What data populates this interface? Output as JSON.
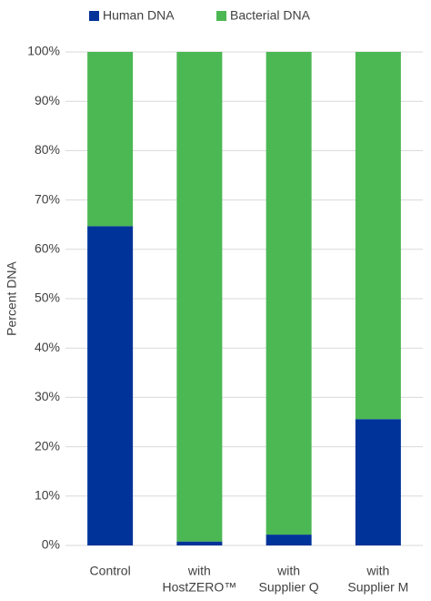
{
  "chart_data": {
    "type": "stacked_bar",
    "y_label": "Percent DNA",
    "categories": [
      [
        "Control"
      ],
      [
        "with",
        "HostZERO™"
      ],
      [
        "with",
        "Supplier Q"
      ],
      [
        "with",
        "Supplier M"
      ]
    ],
    "series": [
      {
        "name": "Human DNA",
        "color": "#003399",
        "values": [
          64.7,
          0.8,
          2.2,
          25.6
        ]
      },
      {
        "name": "Bacterial DNA",
        "color": "#4cb853",
        "values": [
          35.3,
          99.2,
          97.8,
          74.4
        ]
      }
    ],
    "ylim": [
      0,
      100
    ],
    "yticks": [
      {
        "value": 0,
        "label": "0%"
      },
      {
        "value": 10,
        "label": "10%"
      },
      {
        "value": 20,
        "label": "20%"
      },
      {
        "value": 30,
        "label": "30%"
      },
      {
        "value": 40,
        "label": "40%"
      },
      {
        "value": 50,
        "label": "50%"
      },
      {
        "value": 60,
        "label": "60%"
      },
      {
        "value": 70,
        "label": "70%"
      },
      {
        "value": 80,
        "label": "80%"
      },
      {
        "value": 90,
        "label": "90%"
      },
      {
        "value": 100,
        "label": "100%"
      }
    ],
    "grid": true
  }
}
